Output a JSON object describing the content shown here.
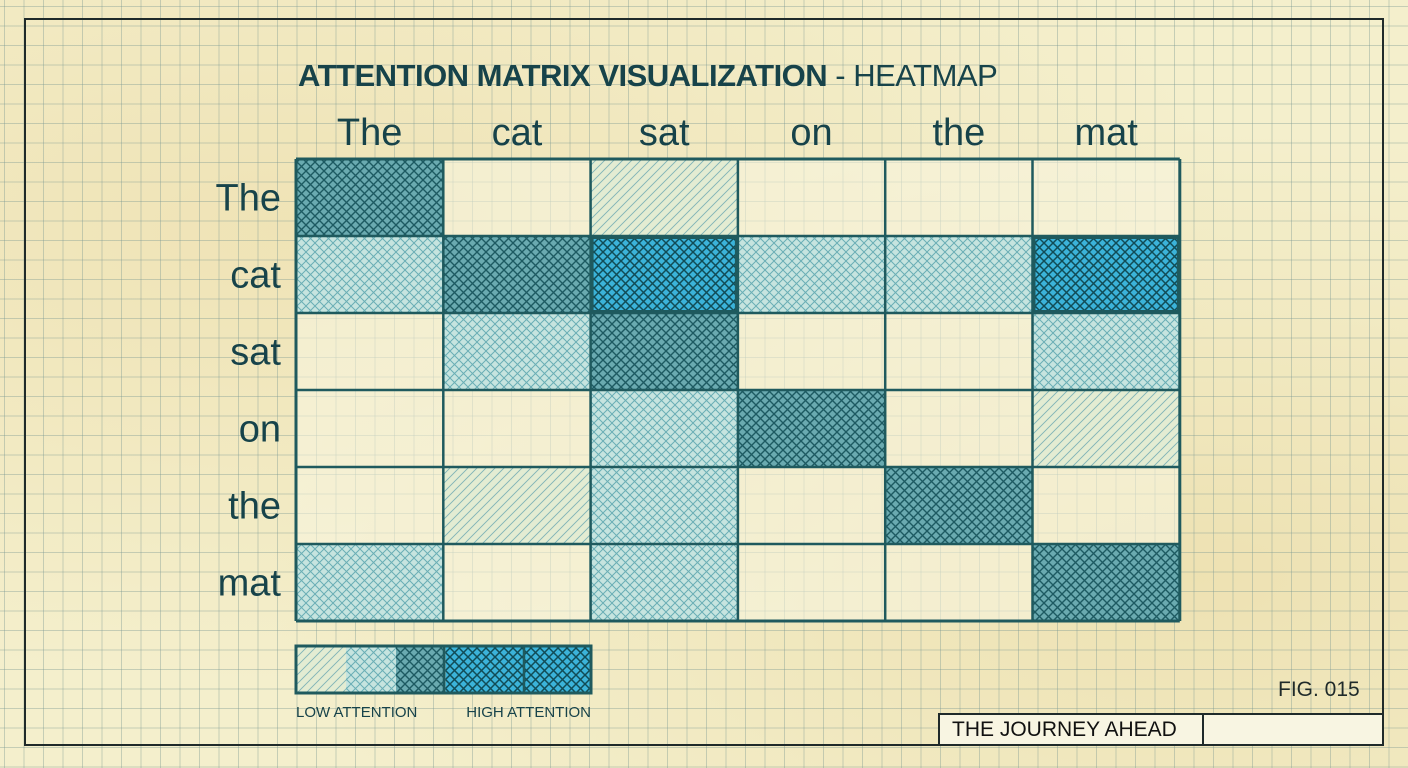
{
  "title": {
    "main": "ATTENTION MATRIX VISUALIZATION",
    "sub": " - HEATMAP"
  },
  "colors": {
    "ink": "#17434a",
    "grid_line": "#1f5a5e",
    "high": "#3bb3d9",
    "mid": "#8ccfdc",
    "low": "#c6e4df",
    "paper": "#f4efcc"
  },
  "chart_data": {
    "type": "heatmap",
    "x_labels": [
      "The",
      "cat",
      "sat",
      "on",
      "the",
      "mat"
    ],
    "y_labels": [
      "The",
      "cat",
      "sat",
      "on",
      "the",
      "mat"
    ],
    "values": [
      [
        0.8,
        0.0,
        0.2,
        0.0,
        0.0,
        0.0
      ],
      [
        0.35,
        0.8,
        1.0,
        0.35,
        0.35,
        1.0
      ],
      [
        0.0,
        0.3,
        0.8,
        0.0,
        0.0,
        0.35
      ],
      [
        0.0,
        0.0,
        0.35,
        0.8,
        0.0,
        0.2
      ],
      [
        0.0,
        0.2,
        0.4,
        0.0,
        0.8,
        0.0
      ],
      [
        0.35,
        0.0,
        0.35,
        0.0,
        0.0,
        0.85
      ]
    ],
    "scale": [
      0,
      1
    ],
    "legend": {
      "low_label": "LOW ATTENTION",
      "high_label": "HIGH ATTENTION"
    }
  },
  "footer": {
    "fig_label": "FIG. 015",
    "journey_label": "THE JOURNEY AHEAD"
  }
}
